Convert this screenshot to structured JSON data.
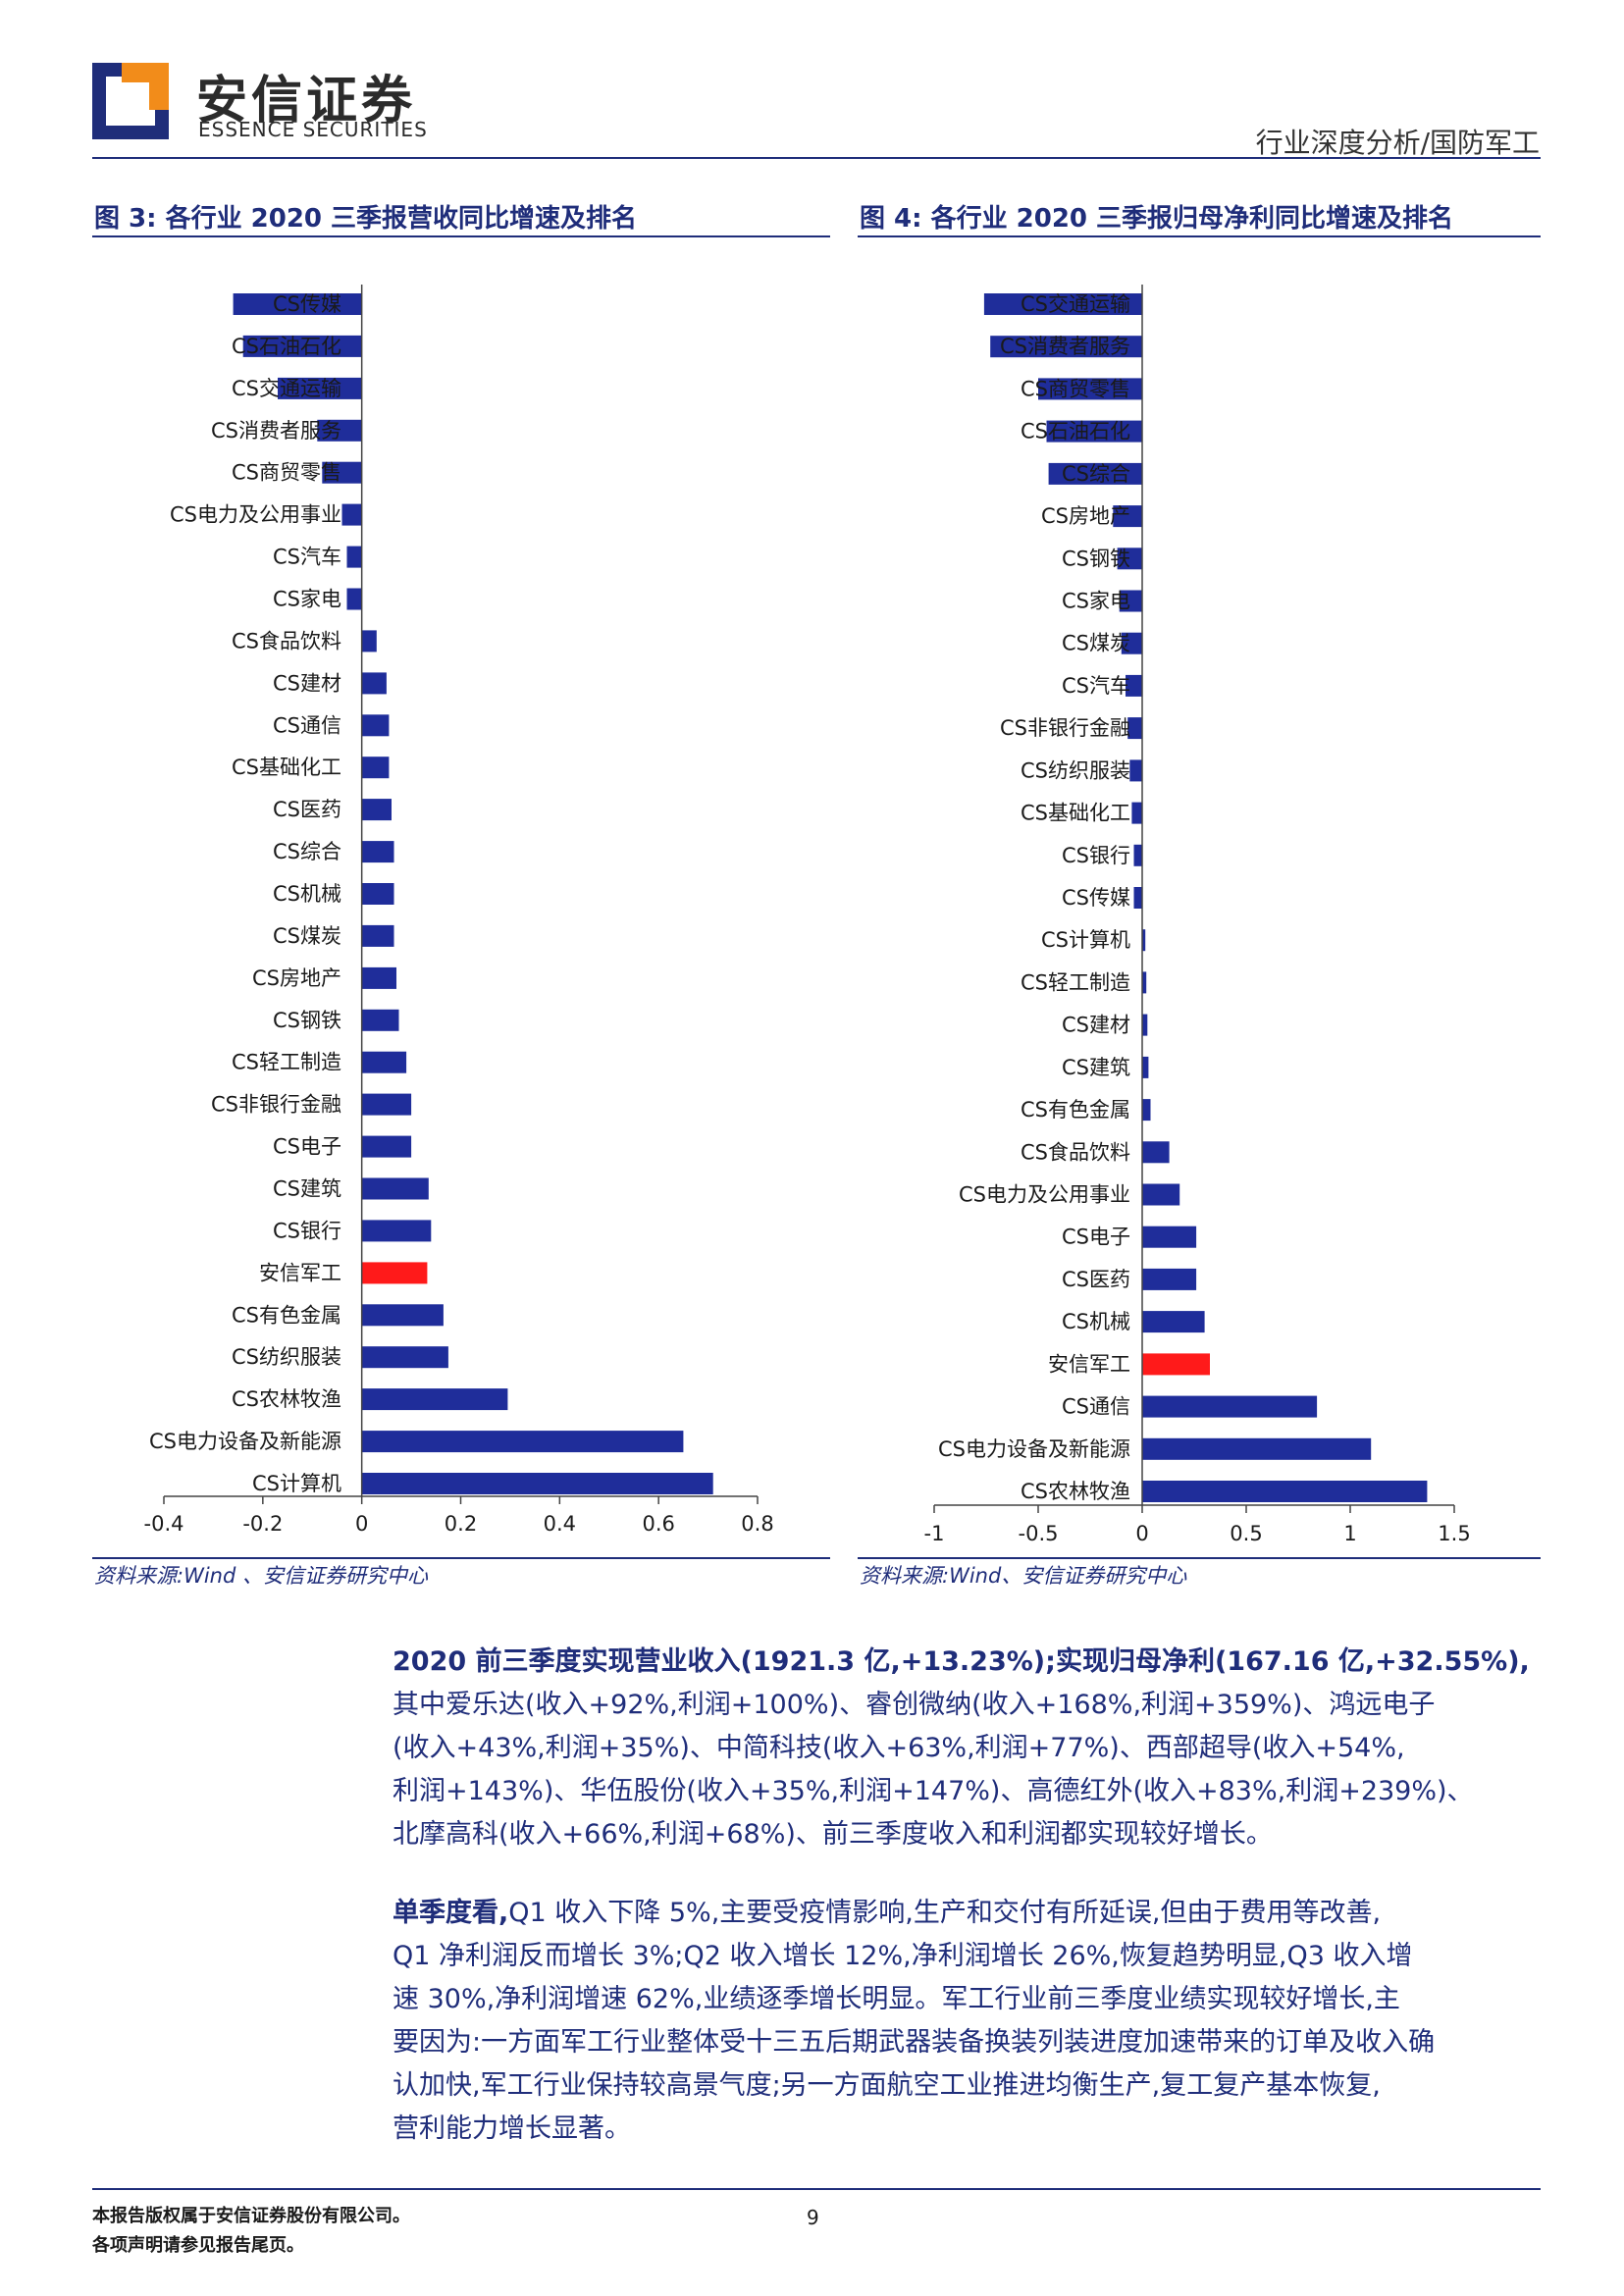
{
  "header": {
    "logo_cn": "安信证券",
    "logo_en": "ESSENCE SECURITIES",
    "section": "行业深度分析/国防军工"
  },
  "figures": [
    {
      "title": "图 3:  各行业 2020 三季报营收同比增速及排名",
      "source": "资料来源:Wind 、安信证券研究中心"
    },
    {
      "title": "图 4:  各行业 2020 三季报归母净利同比增速及排名",
      "source": "资料来源:Wind、安信证券研究中心"
    }
  ],
  "chart_data": [
    {
      "type": "bar",
      "orientation": "horizontal",
      "xlim": [
        -0.4,
        0.8
      ],
      "xticks": [
        "-0.4",
        "-0.2",
        "0",
        "0.2",
        "0.4",
        "0.6",
        "0.8"
      ],
      "bar_color": "#1f2d9a",
      "highlight_color": "#ff1a1a",
      "highlight": "安信军工",
      "categories": [
        "CS传媒",
        "CS石油石化",
        "CS交通运输",
        "CS消费者服务",
        "CS商贸零售",
        "CS电力及公用事业",
        "CS汽车",
        "CS家电",
        "CS食品饮料",
        "CS建材",
        "CS通信",
        "CS基础化工",
        "CS医药",
        "CS综合",
        "CS机械",
        "CS煤炭",
        "CS房地产",
        "CS钢铁",
        "CS轻工制造",
        "CS非银行金融",
        "CS电子",
        "CS建筑",
        "CS银行",
        "安信军工",
        "CS有色金属",
        "CS纺织服装",
        "CS农林牧渔",
        "CS电力设备及新能源",
        "CS计算机"
      ],
      "values": [
        -0.26,
        -0.24,
        -0.17,
        -0.09,
        -0.08,
        -0.04,
        -0.03,
        -0.03,
        0.03,
        0.05,
        0.055,
        0.055,
        0.06,
        0.065,
        0.065,
        0.065,
        0.07,
        0.075,
        0.09,
        0.1,
        0.1,
        0.135,
        0.14,
        0.1323,
        0.165,
        0.175,
        0.295,
        0.65,
        0.71
      ]
    },
    {
      "type": "bar",
      "orientation": "horizontal",
      "xlim": [
        -1,
        1.5
      ],
      "xticks": [
        "-1",
        "-0.5",
        "0",
        "0.5",
        "1",
        "1.5"
      ],
      "bar_color": "#1f2d9a",
      "highlight_color": "#ff1a1a",
      "highlight": "安信军工",
      "categories": [
        "CS交通运输",
        "CS消费者服务",
        "CS商贸零售",
        "CS石油石化",
        "CS综合",
        "CS房地产",
        "CS钢铁",
        "CS家电",
        "CS煤炭",
        "CS汽车",
        "CS非银行金融",
        "CS纺织服装",
        "CS基础化工",
        "CS银行",
        "CS传媒",
        "CS计算机",
        "CS轻工制造",
        "CS建材",
        "CS建筑",
        "CS有色金属",
        "CS食品饮料",
        "CS电力及公用事业",
        "CS电子",
        "CS医药",
        "CS机械",
        "安信军工",
        "CS通信",
        "CS电力设备及新能源",
        "CS农林牧渔"
      ],
      "values": [
        -0.76,
        -0.73,
        -0.5,
        -0.46,
        -0.45,
        -0.14,
        -0.12,
        -0.11,
        -0.1,
        -0.08,
        -0.07,
        -0.06,
        -0.05,
        -0.04,
        -0.04,
        0.015,
        0.02,
        0.025,
        0.03,
        0.04,
        0.13,
        0.18,
        0.26,
        0.26,
        0.3,
        0.3255,
        0.84,
        1.1,
        1.37
      ]
    }
  ],
  "body": {
    "p1_lines": [
      {
        "bold": "2020 前三季度实现营业收入(1921.3 亿,+13.23%);实现归母净利(167.16 亿,+32.55%),",
        "text": ""
      },
      {
        "bold": "",
        "text": "其中爱乐达(收入+92%,利润+100%)、睿创微纳(收入+168%,利润+359%)、鸿远电子"
      },
      {
        "bold": "",
        "text": "(收入+43%,利润+35%)、中简科技(收入+63%,利润+77%)、西部超导(收入+54%,"
      },
      {
        "bold": "",
        "text": "利润+143%)、华伍股份(收入+35%,利润+147%)、高德红外(收入+83%,利润+239%)、"
      },
      {
        "bold": "",
        "text": "北摩高科(收入+66%,利润+68%)、前三季度收入和利润都实现较好增长。"
      }
    ],
    "p2_lines": [
      {
        "bold": "单季度看,",
        "text": "Q1 收入下降 5%,主要受疫情影响,生产和交付有所延误,但由于费用等改善,"
      },
      {
        "bold": "",
        "text": "Q1 净利润反而增长 3%;Q2 收入增长 12%,净利润增长 26%,恢复趋势明显,Q3 收入增"
      },
      {
        "bold": "",
        "text": "速 30%,净利润增速 62%,业绩逐季增长明显。军工行业前三季度业绩实现较好增长,主"
      },
      {
        "bold": "",
        "text": "要因为:一方面军工行业整体受十三五后期武器装备换装列装进度加速带来的订单及收入确"
      },
      {
        "bold": "",
        "text": "认加快,军工行业保持较高景气度;另一方面航空工业推进均衡生产,复工复产基本恢复,"
      },
      {
        "bold": "",
        "text": "营利能力增长显著。"
      }
    ]
  },
  "footer": {
    "line1": "本报告版权属于安信证券股份有限公司。",
    "line2": "各项声明请参见报告尾页。",
    "page": "9"
  }
}
